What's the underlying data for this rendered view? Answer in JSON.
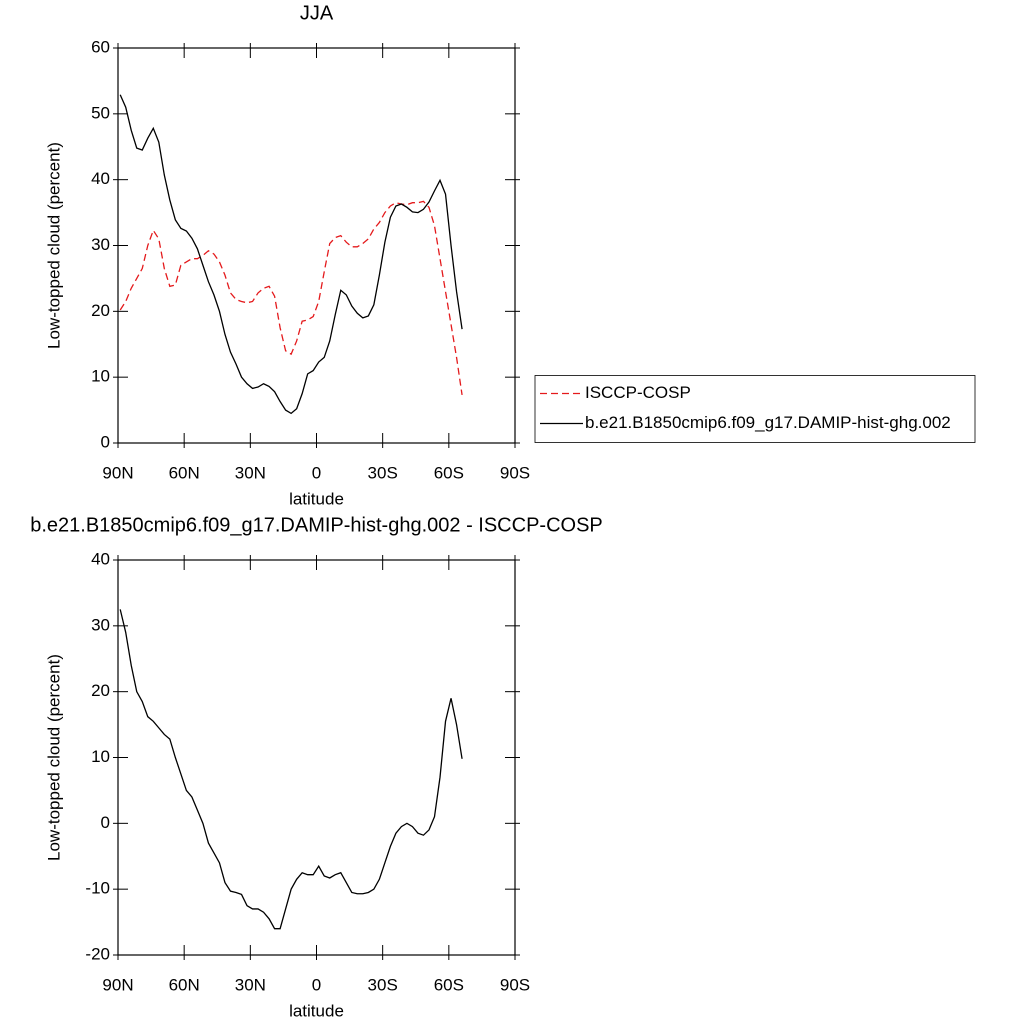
{
  "chart_data": [
    {
      "type": "line",
      "title": "JJA",
      "xlabel": "latitude",
      "ylabel": "Low-topped cloud (percent)",
      "x": [
        89,
        86.5,
        84,
        81.5,
        79,
        76.5,
        74,
        71.5,
        69,
        66.5,
        64,
        61.5,
        59,
        56.5,
        54,
        51.5,
        49,
        46.5,
        44,
        41.5,
        39,
        36.5,
        34,
        31.5,
        29,
        26.5,
        24,
        21.5,
        19,
        16.5,
        14,
        11.5,
        9,
        6.5,
        4,
        1.5,
        -1,
        -3.5,
        -6,
        -8.5,
        -11,
        -13.5,
        -16,
        -18.5,
        -21,
        -23.5,
        -26,
        -28.5,
        -31,
        -33.5,
        -36,
        -38.5,
        -41,
        -43.5,
        -46,
        -48.5,
        -51,
        -53.5,
        -56,
        -58.5,
        -61,
        -63.5,
        -66
      ],
      "xlim": [
        90,
        -90
      ],
      "xticks": [
        {
          "value": 90,
          "label": "90N"
        },
        {
          "value": 60,
          "label": "60N"
        },
        {
          "value": 30,
          "label": "30N"
        },
        0,
        {
          "value": -30,
          "label": "30S"
        },
        {
          "value": -60,
          "label": "60S"
        },
        {
          "value": -90,
          "label": "90S"
        }
      ],
      "ylim": [
        0,
        60
      ],
      "yticks": [
        0,
        10,
        20,
        30,
        40,
        50,
        60
      ],
      "legend": "right",
      "series": [
        {
          "name": "ISCCP-COSP",
          "color": "#e41a1c",
          "style": "dashed",
          "values": [
            20.2,
            21.5,
            23.5,
            25,
            26.5,
            30,
            32.3,
            31,
            26.5,
            23.8,
            24,
            27,
            27.5,
            28,
            28,
            28.5,
            29.2,
            28.7,
            27.5,
            25.5,
            22.8,
            21.8,
            21.5,
            21.3,
            21.5,
            22.8,
            23.5,
            23.8,
            22.3,
            17.5,
            14,
            13.5,
            15.5,
            18.5,
            18.7,
            19.2,
            21.5,
            26,
            30.3,
            31.2,
            31.5,
            30.5,
            29.8,
            29.8,
            30.3,
            31,
            32.5,
            33.5,
            35,
            36,
            36.5,
            36.3,
            36.2,
            36.5,
            36.5,
            36.7,
            35.8,
            33,
            28,
            23,
            18,
            13,
            7.3
          ]
        },
        {
          "name": "b.e21.B1850cmip6.f09_g17.DAMIP-hist-ghg.002",
          "color": "#000000",
          "style": "solid",
          "values": [
            52.9,
            51,
            47.5,
            44.8,
            44.5,
            46.3,
            47.8,
            45.7,
            40.7,
            36.9,
            33.9,
            32.6,
            32.2,
            31.1,
            29.5,
            27,
            24.5,
            22.5,
            20,
            16.5,
            13.8,
            12,
            10,
            9,
            8.3,
            8.5,
            9,
            8.6,
            7.8,
            6.3,
            5,
            4.5,
            5.2,
            7.5,
            10.5,
            11,
            12.3,
            13,
            15.5,
            19.5,
            23.2,
            22.5,
            20.8,
            19.7,
            19,
            19.3,
            21,
            25.5,
            30.5,
            34.3,
            36,
            36.3,
            35.8,
            35.1,
            35,
            35.5,
            36.6,
            38.3,
            39.9,
            37.8,
            30,
            23,
            17.3
          ]
        }
      ]
    },
    {
      "type": "line",
      "title": "b.e21.B1850cmip6.f09_g17.DAMIP-hist-ghg.002 - ISCCP-COSP",
      "xlabel": "latitude",
      "ylabel": "Low-topped cloud (percent)",
      "x": [
        89,
        86.5,
        84,
        81.5,
        79,
        76.5,
        74,
        71.5,
        69,
        66.5,
        64,
        61.5,
        59,
        56.5,
        54,
        51.5,
        49,
        46.5,
        44,
        41.5,
        39,
        36.5,
        34,
        31.5,
        29,
        26.5,
        24,
        21.5,
        19,
        16.5,
        14,
        11.5,
        9,
        6.5,
        4,
        1.5,
        -1,
        -3.5,
        -6,
        -8.5,
        -11,
        -13.5,
        -16,
        -18.5,
        -21,
        -23.5,
        -26,
        -28.5,
        -31,
        -33.5,
        -36,
        -38.5,
        -41,
        -43.5,
        -46,
        -48.5,
        -51,
        -53.5,
        -56,
        -58.5,
        -61,
        -63.5,
        -66
      ],
      "xlim": [
        90,
        -90
      ],
      "xticks": [
        {
          "value": 90,
          "label": "90N"
        },
        {
          "value": 60,
          "label": "60N"
        },
        {
          "value": 30,
          "label": "30N"
        },
        0,
        {
          "value": -30,
          "label": "30S"
        },
        {
          "value": -60,
          "label": "60S"
        },
        {
          "value": -90,
          "label": "90S"
        }
      ],
      "ylim": [
        -20,
        40
      ],
      "yticks": [
        -20,
        -10,
        0,
        10,
        20,
        30,
        40
      ],
      "series": [
        {
          "color": "#000000",
          "style": "solid",
          "values": [
            32.5,
            29,
            24,
            20,
            18.5,
            16.2,
            15.5,
            14.5,
            13.5,
            12.8,
            10,
            7.5,
            5,
            4,
            2,
            0,
            -3,
            -4.5,
            -6,
            -9,
            -10.3,
            -10.5,
            -10.8,
            -12.5,
            -13,
            -13,
            -13.5,
            -14.5,
            -16,
            -16,
            -13,
            -10,
            -8.5,
            -7.5,
            -7.8,
            -7.8,
            -6.5,
            -8,
            -8.3,
            -7.8,
            -7.5,
            -9,
            -10.5,
            -10.7,
            -10.7,
            -10.5,
            -10,
            -8.5,
            -6,
            -3.5,
            -1.5,
            -0.5,
            0,
            -0.5,
            -1.5,
            -1.8,
            -1,
            1,
            7,
            15.5,
            19,
            15,
            9.8
          ]
        }
      ]
    }
  ]
}
